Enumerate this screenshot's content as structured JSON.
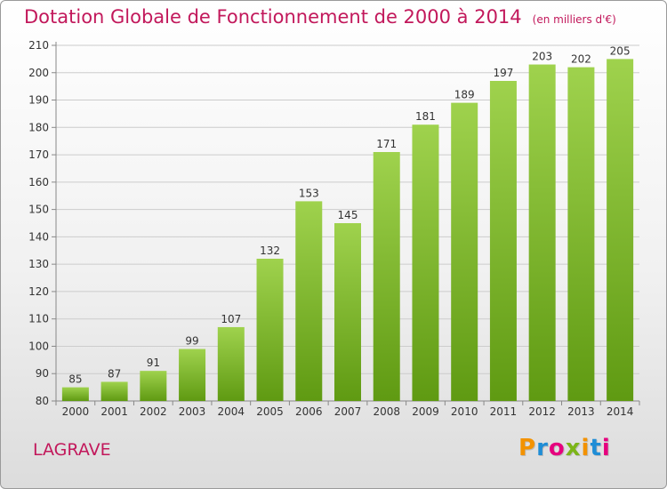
{
  "header": {
    "title": "Dotation Globale de Fonctionnement de 2000 à 2014",
    "subtitle": "(en milliers d'€)"
  },
  "footer": {
    "commune": "LAGRAVE",
    "logo_text": "Proxiti"
  },
  "colors": {
    "title": "#c2185b",
    "bar_light": "#9fd24d",
    "bar_dark": "#5f9a12",
    "logo": [
      "#f39200",
      "#1f8dd6",
      "#e6007e",
      "#7cb518",
      "#f39200",
      "#1f8dd6",
      "#e6007e"
    ]
  },
  "chart_data": {
    "type": "bar",
    "categories": [
      "2000",
      "2001",
      "2002",
      "2003",
      "2004",
      "2005",
      "2006",
      "2007",
      "2008",
      "2009",
      "2010",
      "2011",
      "2012",
      "2013",
      "2014"
    ],
    "values": [
      85,
      87,
      91,
      99,
      107,
      132,
      153,
      145,
      171,
      181,
      189,
      197,
      203,
      202,
      205
    ],
    "data_labels": [
      "85",
      "87",
      "91",
      "99",
      "107",
      "132",
      "153",
      "145",
      "171",
      "181",
      "189",
      "197",
      "203",
      "202",
      "205"
    ],
    "yticks": [
      "80",
      "90",
      "100",
      "110",
      "120",
      "130",
      "140",
      "150",
      "160",
      "170",
      "180",
      "190",
      "200",
      "210"
    ],
    "ylim": [
      80,
      210
    ],
    "grid": true
  }
}
